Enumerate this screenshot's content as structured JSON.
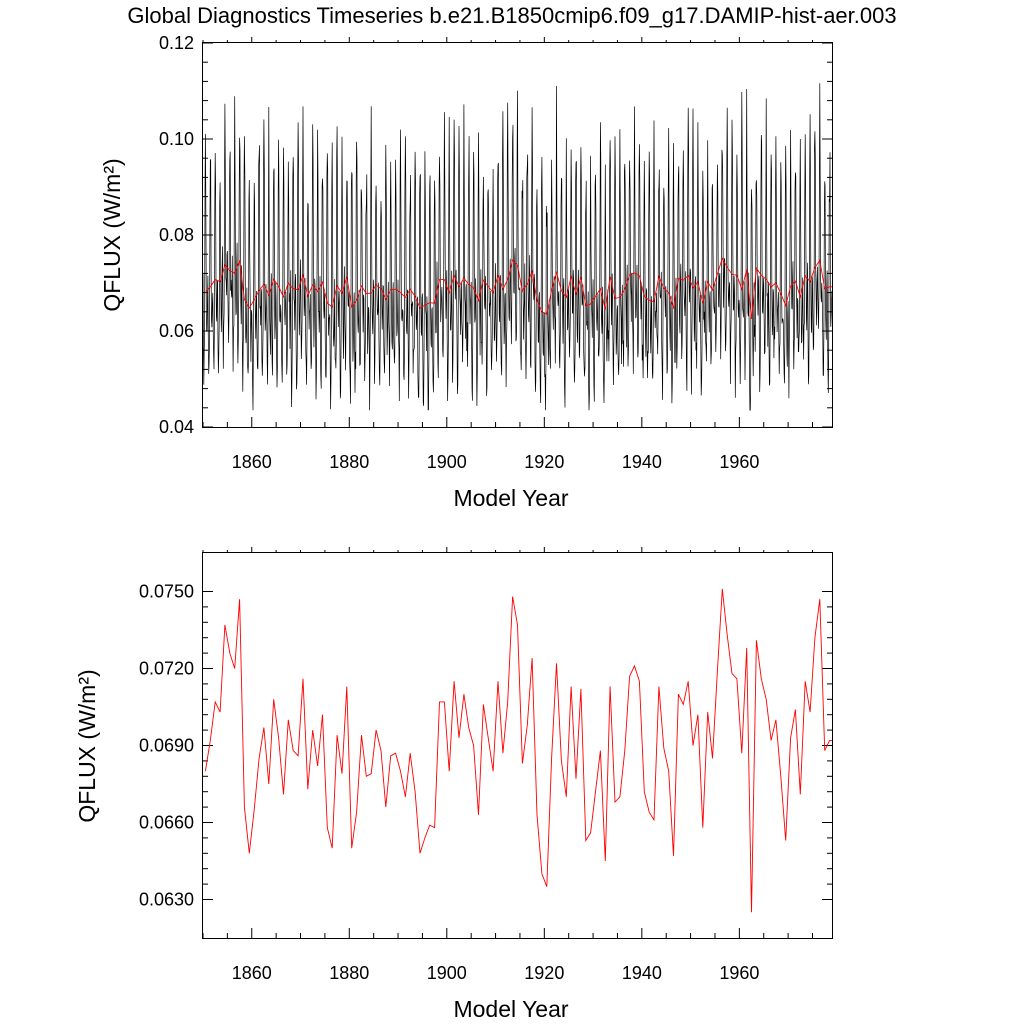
{
  "title": "Global Diagnostics Timeseries b.e21.B1850cmip6.f09_g17.DAMIP-hist-aer.003",
  "colors": {
    "monthly": "#000000",
    "annual": "#ff0000"
  },
  "chart_data": [
    {
      "type": "line",
      "panel": "top",
      "xlabel": "Model Year",
      "ylabel": "QFLUX (W/m²)",
      "xlim": [
        1850,
        1979
      ],
      "ylim": [
        0.04,
        0.12
      ],
      "x_ticks": [
        "1860",
        "1880",
        "1900",
        "1920",
        "1940",
        "1960"
      ],
      "y_ticks": [
        "0.04",
        "0.06",
        "0.08",
        "0.10",
        "0.12"
      ],
      "series": [
        {
          "role": "monthly",
          "color": "#000000",
          "monthly_profile": [
            0.07,
            0.06,
            0.054,
            0.055,
            0.062,
            0.086,
            0.096,
            0.088,
            0.069,
            0.063,
            0.062,
            0.068
          ],
          "notes_range": [
            0.044,
            0.115
          ]
        },
        {
          "role": "annual",
          "color": "#ff0000"
        }
      ]
    },
    {
      "type": "line",
      "panel": "bottom",
      "xlabel": "Model Year",
      "ylabel": "QFLUX (W/m²)",
      "xlim": [
        1850,
        1979
      ],
      "ylim": [
        0.0615,
        0.0765
      ],
      "x_ticks": [
        "1860",
        "1880",
        "1900",
        "1920",
        "1940",
        "1960"
      ],
      "y_ticks": [
        "0.0630",
        "0.0660",
        "0.0690",
        "0.0720",
        "0.0750"
      ],
      "series": [
        {
          "role": "annual",
          "color": "#ff0000",
          "x": [
            1850,
            1851,
            1852,
            1853,
            1854,
            1855,
            1856,
            1857,
            1858,
            1859,
            1860,
            1861,
            1862,
            1863,
            1864,
            1865,
            1866,
            1867,
            1868,
            1869,
            1870,
            1871,
            1872,
            1873,
            1874,
            1875,
            1876,
            1877,
            1878,
            1879,
            1880,
            1881,
            1882,
            1883,
            1884,
            1885,
            1886,
            1887,
            1888,
            1889,
            1890,
            1891,
            1892,
            1893,
            1894,
            1895,
            1896,
            1897,
            1898,
            1899,
            1900,
            1901,
            1902,
            1903,
            1904,
            1905,
            1906,
            1907,
            1908,
            1909,
            1910,
            1911,
            1912,
            1913,
            1914,
            1915,
            1916,
            1917,
            1918,
            1919,
            1920,
            1921,
            1922,
            1923,
            1924,
            1925,
            1926,
            1927,
            1928,
            1929,
            1930,
            1931,
            1932,
            1933,
            1934,
            1935,
            1936,
            1937,
            1938,
            1939,
            1940,
            1941,
            1942,
            1943,
            1944,
            1945,
            1946,
            1947,
            1948,
            1949,
            1950,
            1951,
            1952,
            1953,
            1954,
            1955,
            1956,
            1957,
            1958,
            1959,
            1960,
            1961,
            1962,
            1963,
            1964,
            1965,
            1966,
            1967,
            1968,
            1969,
            1970,
            1971,
            1972,
            1973,
            1974,
            1975,
            1976,
            1977,
            1978,
            1979
          ],
          "values": [
            0.068,
            0.0692,
            0.0707,
            0.0703,
            0.0737,
            0.0726,
            0.072,
            0.0747,
            0.0666,
            0.0648,
            0.0665,
            0.0685,
            0.0697,
            0.0675,
            0.0708,
            0.0693,
            0.0671,
            0.07,
            0.0688,
            0.0686,
            0.0716,
            0.0673,
            0.0696,
            0.0682,
            0.0702,
            0.0658,
            0.065,
            0.0694,
            0.0679,
            0.0713,
            0.065,
            0.0664,
            0.0694,
            0.0678,
            0.0679,
            0.0696,
            0.0688,
            0.0666,
            0.0686,
            0.0687,
            0.068,
            0.067,
            0.0687,
            0.0672,
            0.0648,
            0.0654,
            0.0659,
            0.0658,
            0.0707,
            0.0707,
            0.068,
            0.0715,
            0.0693,
            0.071,
            0.0697,
            0.069,
            0.0663,
            0.0706,
            0.0693,
            0.068,
            0.0715,
            0.0687,
            0.0707,
            0.0748,
            0.0737,
            0.0683,
            0.0698,
            0.0724,
            0.0663,
            0.064,
            0.0635,
            0.0685,
            0.0722,
            0.0684,
            0.067,
            0.0713,
            0.0677,
            0.0712,
            0.0653,
            0.0656,
            0.0672,
            0.0688,
            0.0645,
            0.0713,
            0.0668,
            0.067,
            0.0688,
            0.0717,
            0.0721,
            0.0715,
            0.0672,
            0.0664,
            0.0661,
            0.0713,
            0.0689,
            0.068,
            0.0647,
            0.071,
            0.0706,
            0.0715,
            0.069,
            0.0702,
            0.0658,
            0.0703,
            0.0685,
            0.0719,
            0.0751,
            0.0733,
            0.0718,
            0.0716,
            0.0687,
            0.0728,
            0.0625,
            0.0731,
            0.0716,
            0.0708,
            0.0692,
            0.07,
            0.0678,
            0.0653,
            0.0693,
            0.0704,
            0.0671,
            0.0715,
            0.0703,
            0.0732,
            0.0747,
            0.0688,
            0.0692,
            0.0692
          ]
        }
      ]
    }
  ]
}
